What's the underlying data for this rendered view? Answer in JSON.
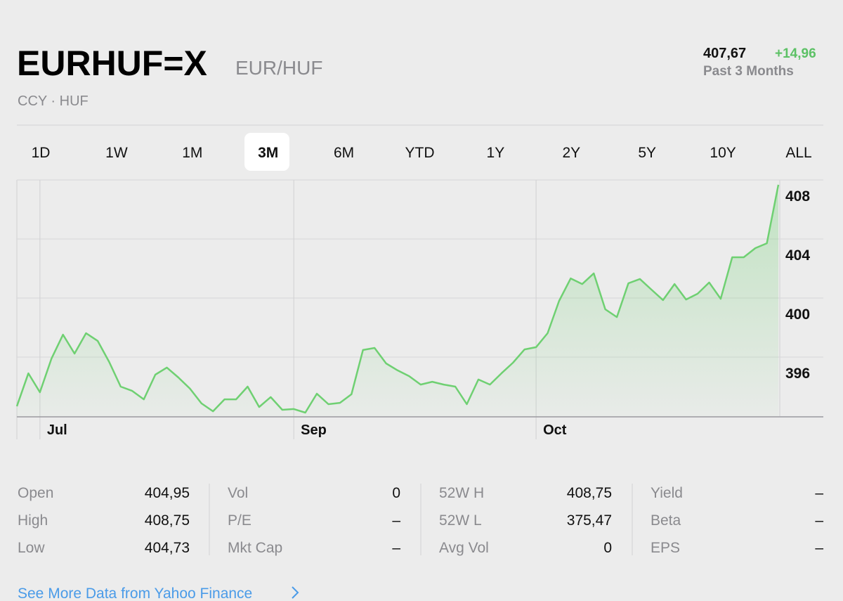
{
  "header": {
    "symbol": "EURHUF=X",
    "name": "EUR/HUF",
    "exchange": "CCY · HUF",
    "price": "407,67",
    "change": "+14,96",
    "period": "Past 3 Months"
  },
  "tabs": [
    "1D",
    "1W",
    "1M",
    "3M",
    "6M",
    "YTD",
    "1Y",
    "2Y",
    "5Y",
    "10Y",
    "ALL"
  ],
  "chart_data": {
    "type": "line",
    "color": "#6fd072",
    "categories": [
      null,
      null,
      "Jul",
      null,
      null,
      null,
      null,
      null,
      null,
      null,
      null,
      null,
      null,
      null,
      null,
      null,
      null,
      null,
      null,
      null,
      null,
      null,
      null,
      null,
      "Sep",
      null,
      null,
      null,
      null,
      null,
      null,
      null,
      null,
      null,
      null,
      null,
      null,
      null,
      null,
      null,
      null,
      null,
      null,
      null,
      null,
      "Oct",
      null,
      null,
      null,
      null,
      null,
      null,
      null,
      null,
      null,
      null,
      null,
      null,
      null,
      null,
      null,
      null,
      null,
      null,
      null,
      null,
      null
    ],
    "values": [
      392.67,
      394.9,
      393.62,
      395.9,
      397.52,
      396.24,
      397.62,
      397.1,
      395.67,
      394.0,
      393.71,
      393.14,
      394.81,
      395.29,
      394.62,
      393.86,
      392.86,
      392.33,
      393.14,
      393.14,
      394.0,
      392.62,
      393.29,
      392.43,
      392.48,
      392.24,
      393.52,
      392.81,
      392.9,
      393.48,
      396.48,
      396.62,
      395.57,
      395.1,
      394.71,
      394.14,
      394.33,
      394.14,
      394.0,
      392.81,
      394.48,
      394.14,
      394.9,
      395.62,
      396.52,
      396.67,
      397.62,
      399.81,
      401.33,
      400.95,
      401.67,
      399.24,
      398.71,
      401.0,
      401.29,
      400.57,
      399.86,
      400.95,
      399.9,
      400.29,
      401.05,
      399.95,
      402.76,
      402.76,
      403.38,
      403.71,
      407.67
    ],
    "ylim": [
      392,
      408
    ],
    "yticks": [
      396,
      400,
      404,
      408
    ],
    "grid": true
  },
  "stats": [
    [
      {
        "label": "Open",
        "value": "404,95"
      },
      {
        "label": "High",
        "value": "408,75"
      },
      {
        "label": "Low",
        "value": "404,73"
      }
    ],
    [
      {
        "label": "Vol",
        "value": "0"
      },
      {
        "label": "P/E",
        "value": "–"
      },
      {
        "label": "Mkt Cap",
        "value": "–"
      }
    ],
    [
      {
        "label": "52W H",
        "value": "408,75"
      },
      {
        "label": "52W L",
        "value": "375,47"
      },
      {
        "label": "Avg Vol",
        "value": "0"
      }
    ],
    [
      {
        "label": "Yield",
        "value": "–"
      },
      {
        "label": "Beta",
        "value": "–"
      },
      {
        "label": "EPS",
        "value": "–"
      }
    ]
  ],
  "link": "See More Data from Yahoo Finance"
}
